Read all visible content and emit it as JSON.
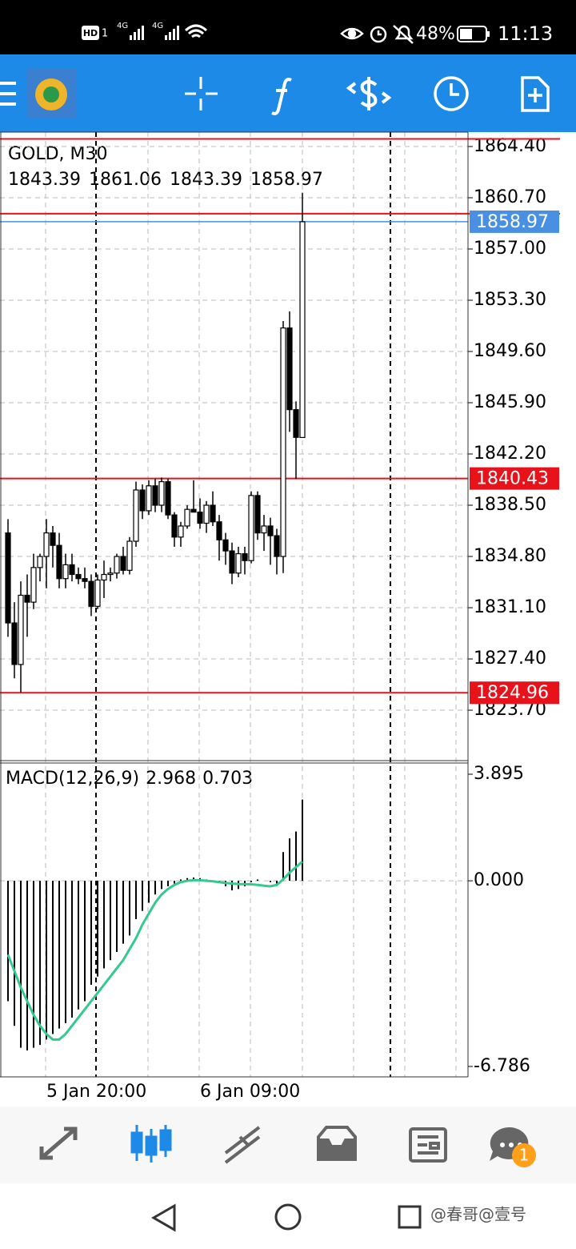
{
  "status_bar": {
    "hd": "HD",
    "sim": "1",
    "network": [
      "4G",
      "4G"
    ],
    "battery": "48%",
    "time": "11:13"
  },
  "chart_data": [
    {
      "type": "candlestick",
      "title": "GOLD, M30",
      "categories": [
        null,
        null,
        null,
        null,
        null,
        null,
        "5 Jan 20:00",
        null,
        null,
        null,
        null,
        null,
        null,
        null,
        null,
        null,
        null,
        null,
        null,
        null,
        null,
        null,
        null,
        null,
        null,
        null,
        null,
        null,
        null,
        null,
        "6 Jan 09:00",
        null,
        null,
        null,
        null,
        null,
        null,
        null,
        null,
        null,
        null,
        null,
        null,
        null,
        null,
        null,
        null
      ],
      "open": [
        1836.5,
        1830,
        1827,
        1832,
        1831.5,
        1834,
        1834.8,
        1836.5,
        1835.6,
        1833.2,
        1834.2,
        1833.5,
        1833.2,
        1833,
        1831.2,
        1833.1,
        1833.5,
        1833.6,
        1834.8,
        1833.8,
        1835.9,
        1839.6,
        1838.1,
        1839.9,
        1838.5,
        1840.2,
        1837.8,
        1836.2,
        1837,
        1838.2,
        1838,
        1837.2,
        1838.5,
        1837.3,
        1836,
        1835.2,
        1833.6,
        1835,
        1834.5,
        1839.2,
        1836.5,
        1837,
        1836.3,
        1834.8,
        1851.3,
        1845.4,
        1843.39
      ],
      "high": [
        1837.5,
        1831.5,
        1833,
        1833.5,
        1835,
        1835,
        1837.5,
        1837,
        1836.5,
        1835,
        1835,
        1834,
        1834,
        1833.5,
        1833.5,
        1834.5,
        1834,
        1835,
        1835.5,
        1836.2,
        1840.2,
        1840,
        1840.3,
        1840.4,
        1840.5,
        1840.4,
        1838,
        1837.3,
        1838.5,
        1840.3,
        1839,
        1838.8,
        1839.5,
        1837.8,
        1836.5,
        1835.8,
        1835.5,
        1835.5,
        1839.5,
        1839.5,
        1837.8,
        1837.6,
        1836.8,
        1851.8,
        1852.5,
        1846,
        1861.06
      ],
      "low": [
        1829,
        1826,
        1825,
        1829,
        1831,
        1833,
        1832.5,
        1834,
        1832.5,
        1832.5,
        1833,
        1832.8,
        1832.5,
        1830.5,
        1831,
        1831.8,
        1833,
        1833.2,
        1833.5,
        1833.5,
        1835.5,
        1837.5,
        1837.8,
        1838,
        1838,
        1837.5,
        1835.5,
        1835.5,
        1836.8,
        1838,
        1836.8,
        1836.5,
        1837,
        1834.5,
        1834.2,
        1832.8,
        1833.3,
        1833.5,
        1834.3,
        1836,
        1835.2,
        1834.2,
        1833.5,
        1833.6,
        1843.8,
        1840.4,
        1843.39
      ],
      "close": [
        1830,
        1827,
        1832,
        1831.5,
        1834,
        1834.8,
        1836.5,
        1835.6,
        1833.2,
        1834.2,
        1833.5,
        1833.2,
        1833,
        1831.2,
        1833.1,
        1833.5,
        1833.6,
        1834.8,
        1833.8,
        1835.9,
        1839.6,
        1838.1,
        1839.9,
        1838.5,
        1840.2,
        1837.8,
        1836.2,
        1837,
        1838.2,
        1838,
        1837.2,
        1838.5,
        1837.3,
        1836,
        1835.2,
        1833.6,
        1835,
        1834.5,
        1839.2,
        1836.5,
        1837,
        1836.3,
        1834.8,
        1851.3,
        1845.4,
        1843.4,
        1858.97
      ],
      "ylim": [
        1820.06,
        1865.44
      ],
      "yticks": [
        {
          "value": 1864.4,
          "label": "1864.40"
        },
        {
          "value": 1860.7,
          "label": "1860.70"
        },
        {
          "value": 1857,
          "label": "1857.00"
        },
        {
          "value": 1853.3,
          "label": "1853.30"
        },
        {
          "value": 1849.6,
          "label": "1849.60"
        },
        {
          "value": 1845.9,
          "label": "1845.90"
        },
        {
          "value": 1842.2,
          "label": "1842.20"
        },
        {
          "value": 1838.5,
          "label": "1838.50"
        },
        {
          "value": 1834.8,
          "label": "1834.80"
        },
        {
          "value": 1831.1,
          "label": "1831.10"
        },
        {
          "value": 1827.4,
          "label": "1827.40"
        },
        {
          "value": 1823.7,
          "label": "1823.70"
        }
      ],
      "grid": true,
      "up_color": "#ffffff",
      "down_color": "#000000",
      "hlines": [
        1864.95,
        1859.55
      ],
      "levels": [
        1840.43,
        1824.96
      ],
      "level_color": "#e8121b",
      "bid_color": "#4a90e2"
    },
    {
      "type": "macd",
      "title": "MACD(12,26,9)",
      "histogram": [
        -4.4,
        -5.3,
        -6.1,
        -6.2,
        -6.1,
        -6.0,
        -5.8,
        -5.6,
        -5.4,
        -5.2,
        -5.0,
        -4.7,
        -4.4,
        -3.8,
        -3.5,
        -3.2,
        -2.9,
        -2.6,
        -2.3,
        -2.0,
        -1.4,
        -1.1,
        -0.8,
        -0.5,
        -0.3,
        -0.2,
        -0.1,
        0.05,
        0.1,
        0.12,
        0.1,
        0.05,
        0.0,
        -0.05,
        -0.2,
        -0.35,
        -0.3,
        -0.2,
        -0.05,
        0.05,
        0.0,
        -0.05,
        -0.1,
        1.05,
        1.55,
        1.8,
        2.968
      ],
      "signal": [
        -2.7,
        -3.3,
        -3.9,
        -4.4,
        -4.9,
        -5.3,
        -5.6,
        -5.8,
        -5.8,
        -5.6,
        -5.3,
        -5.0,
        -4.7,
        -4.4,
        -4.1,
        -3.8,
        -3.5,
        -3.2,
        -2.9,
        -2.5,
        -2.1,
        -1.6,
        -1.2,
        -0.8,
        -0.5,
        -0.3,
        -0.15,
        -0.05,
        0.0,
        0.02,
        0.02,
        0.0,
        -0.02,
        -0.05,
        -0.08,
        -0.1,
        -0.12,
        -0.12,
        -0.13,
        -0.15,
        -0.18,
        -0.2,
        -0.15,
        0.05,
        0.3,
        0.5,
        0.703
      ],
      "signal_color": "#33c98f",
      "ylim": [
        -7.166,
        4.305
      ],
      "yticks": [
        3.895,
        {
          "value": 0,
          "label": "0.000"
        },
        -6.786
      ]
    }
  ],
  "tab_bar": {
    "badge": "1"
  },
  "watermark": "@春哥@壹号"
}
